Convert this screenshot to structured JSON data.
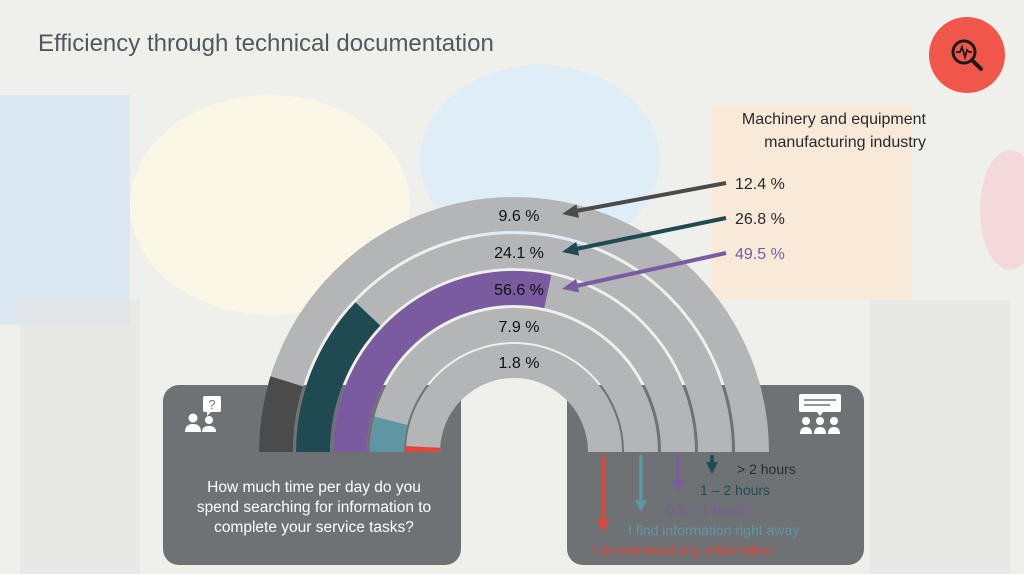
{
  "title": "Efficiency through technical documentation",
  "industry": {
    "title_line1": "Machinery and equipment",
    "title_line2": "manufacturing industry"
  },
  "question": "How much time per day do you spend searching for information to complete your service tasks?",
  "icons": {
    "badge": "search-pulse-icon",
    "question": "people-question-icon",
    "answers": "people-chat-icon"
  },
  "colors": {
    "dark_gray": "#4b4b4b",
    "teal_dark": "#1f4a52",
    "purple": "#7a5ba0",
    "teal_light": "#5e97a3",
    "red": "#e0453a",
    "arc_bg": "#b3b5b6",
    "badge": "#f0564a"
  },
  "chart_data": {
    "type": "radial-bar",
    "categories": [
      "> 2 hours",
      "1 – 2 hours",
      "0.5 – 1 hours",
      "I find information right away",
      "I do not need any information"
    ],
    "series": [
      {
        "values": [
          9.6,
          24.1,
          56.6,
          7.9,
          1.8
        ]
      }
    ],
    "value_labels": [
      "9.6 %",
      "24.1 %",
      "56.6 %",
      "7.9 %",
      "1.8 %"
    ],
    "industry_values": [
      12.4,
      26.8,
      49.5
    ],
    "industry_labels": [
      "12.4 %",
      "26.8 %",
      "49.5 %"
    ],
    "industry_title": "Machinery and equipment manufacturing industry",
    "unit": "%"
  }
}
